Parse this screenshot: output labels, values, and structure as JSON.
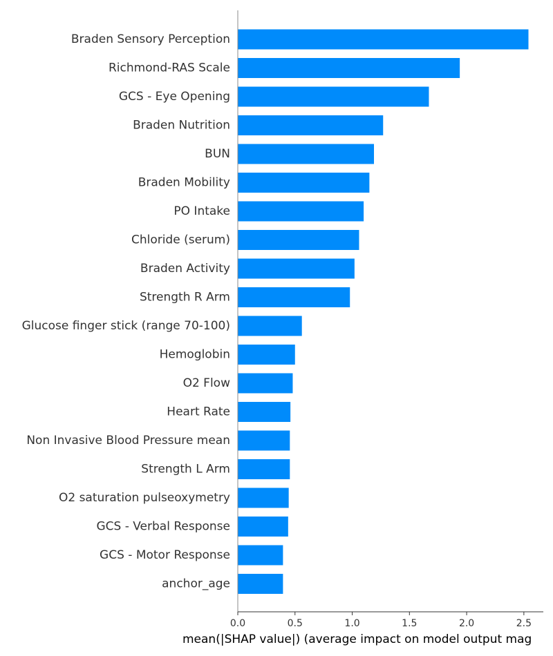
{
  "chart_data": {
    "type": "bar",
    "orientation": "horizontal",
    "categories": [
      "Braden Sensory Perception",
      "Richmond-RAS Scale",
      "GCS - Eye Opening",
      "Braden Nutrition",
      "BUN",
      "Braden Mobility",
      "PO Intake",
      "Chloride (serum)",
      "Braden Activity",
      "Strength R Arm",
      "Glucose finger stick (range 70-100)",
      "Hemoglobin",
      "O2 Flow",
      "Heart Rate",
      "Non Invasive Blood Pressure mean",
      "Strength L Arm",
      "O2 saturation pulseoxymetry",
      "GCS - Verbal Response",
      "GCS - Motor Response",
      "anchor_age"
    ],
    "values": [
      2.54,
      1.94,
      1.67,
      1.27,
      1.19,
      1.15,
      1.1,
      1.06,
      1.02,
      0.98,
      0.56,
      0.5,
      0.48,
      0.46,
      0.455,
      0.455,
      0.445,
      0.44,
      0.395,
      0.395
    ],
    "xlabel": "mean(|SHAP value|) (average impact on model output mag",
    "ylabel": "",
    "xlim": [
      0,
      2.67
    ],
    "xticks": [
      0.0,
      0.5,
      1.0,
      1.5,
      2.0,
      2.5
    ],
    "xtick_labels": [
      "0.0",
      "0.5",
      "1.0",
      "1.5",
      "2.0",
      "2.5"
    ],
    "grid": false,
    "bar_color": "#008bfb",
    "axis_color": "#888888",
    "label_color": "#333333"
  }
}
